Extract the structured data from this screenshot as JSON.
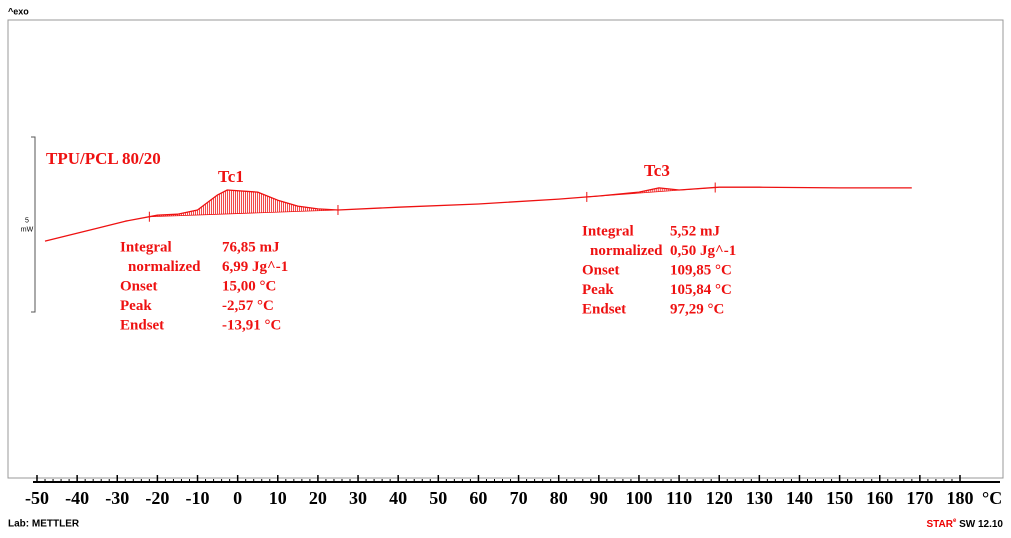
{
  "chart_data": {
    "type": "line",
    "exo_label": "^exo",
    "sample": "TPU/PCL 80/20",
    "x": [
      -48,
      -35,
      -28,
      -20,
      -15,
      -10,
      -5,
      -2.57,
      5,
      10,
      15,
      20,
      25,
      40,
      60,
      80,
      90,
      100,
      105,
      110,
      120,
      130,
      150,
      168
    ],
    "series": [
      {
        "name": "TPU/PCL 80/20",
        "color": "#ee1111",
        "values": [
          6.77,
          7.14,
          7.34,
          7.51,
          7.54,
          7.66,
          8.09,
          8.23,
          8.17,
          7.94,
          7.77,
          7.69,
          7.66,
          7.74,
          7.83,
          7.97,
          8.06,
          8.17,
          8.29,
          8.23,
          8.31,
          8.31,
          8.29,
          8.29
        ]
      }
    ],
    "xlim": [
      -50,
      180
    ],
    "xticks": [
      -50,
      -40,
      -30,
      -20,
      -10,
      0,
      10,
      20,
      30,
      40,
      50,
      60,
      70,
      80,
      90,
      100,
      110,
      120,
      130,
      140,
      150,
      160,
      170,
      180
    ],
    "xminor_step": 2,
    "x_unit": "°C",
    "ylim": [
      0,
      13.09
    ],
    "scale_bar": {
      "value": 5,
      "unit": "mW"
    },
    "integrations": [
      {
        "label": "Tc1",
        "limits": [
          -22,
          25
        ],
        "rows": [
          [
            "Integral",
            "76,85 mJ"
          ],
          [
            "normalized",
            "6,99 Jg^-1"
          ],
          [
            "Onset",
            "15,00 °C"
          ],
          [
            "Peak",
            "-2,57 °C"
          ],
          [
            "Endset",
            "-13,91 °C"
          ]
        ]
      },
      {
        "label": "Tc3",
        "limits": [
          87,
          119
        ],
        "rows": [
          [
            "Integral",
            "5,52 mJ"
          ],
          [
            "normalized",
            "0,50 Jg^-1"
          ],
          [
            "Onset",
            "109,85 °C"
          ],
          [
            "Peak",
            "105,84 °C"
          ],
          [
            "Endset",
            "97,29 °C"
          ]
        ]
      }
    ],
    "footer_left": "Lab: METTLER",
    "footer_right": {
      "name": "STAR",
      "sup": "e",
      "version": "SW 12.10"
    }
  }
}
